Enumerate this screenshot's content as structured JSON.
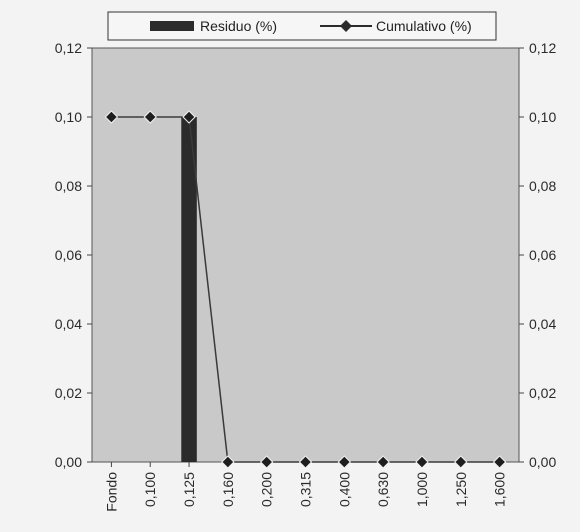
{
  "chart_data": {
    "type": "bar",
    "categories": [
      "Fondo",
      "0,100",
      "0,125",
      "0,160",
      "0,200",
      "0,315",
      "0,400",
      "0,630",
      "1,000",
      "1,250",
      "1,600"
    ],
    "series": [
      {
        "name": "Residuo (%)",
        "kind": "bar",
        "values": [
          0,
          0,
          0.1,
          0,
          0,
          0,
          0,
          0,
          0,
          0,
          0
        ]
      },
      {
        "name": "Cumulativo (%)",
        "kind": "line",
        "values": [
          0.1,
          0.1,
          0.1,
          0,
          0,
          0,
          0,
          0,
          0,
          0,
          0
        ]
      }
    ],
    "ylim": [
      0,
      0.12
    ],
    "y_ticks": [
      "0,00",
      "0,02",
      "0,04",
      "0,06",
      "0,08",
      "0,10",
      "0,12"
    ],
    "y2_ticks": [
      "0,00",
      "0,02",
      "0,04",
      "0,06",
      "0,08",
      "0,10",
      "0,12"
    ],
    "legend_position": "top",
    "grid": false,
    "colors": {
      "bar": "#2b2b2b",
      "line": "#3a3a3a",
      "plot_bg": "#c9c9c9",
      "frame": "#555555"
    }
  }
}
